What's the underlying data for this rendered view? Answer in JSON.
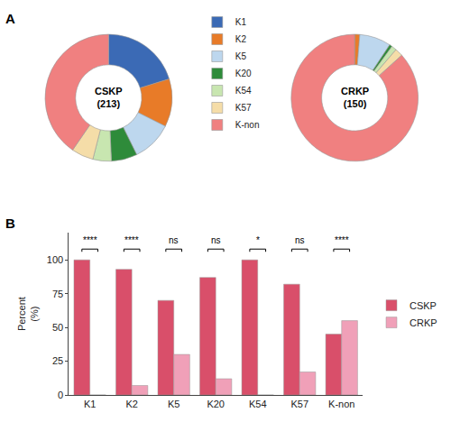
{
  "chart_data": [
    {
      "type": "pie",
      "title": "A",
      "categories": [
        "K1",
        "K2",
        "K5",
        "K20",
        "K54",
        "K57",
        "K-non"
      ],
      "values": [
        20.2,
        12.2,
        10.3,
        6.6,
        4.7,
        5.6,
        40.4
      ],
      "colors": [
        "#3B6AB5",
        "#E87B28",
        "#BDD7EE",
        "#2E8B3A",
        "#C8E6B0",
        "#F5DDA8",
        "#F08080"
      ],
      "annotations": [
        "CSKP\n(213)"
      ],
      "legend": "top"
    },
    {
      "type": "pie",
      "categories": [
        "K1",
        "K2",
        "K5",
        "K20",
        "K54",
        "K57",
        "K-non"
      ],
      "values": [
        0.0,
        1.3,
        8.0,
        0.7,
        1.3,
        2.0,
        86.7
      ],
      "colors": [
        "#3B6AB5",
        "#E87B28",
        "#BDD7EE",
        "#2E8B3A",
        "#C8E6B0",
        "#F5DDA8",
        "#F08080"
      ],
      "annotations": [
        "CRKP\n(150)"
      ],
      "legend": "top"
    },
    {
      "type": "bar",
      "title": "B",
      "categories": [
        "K1",
        "K2",
        "K5",
        "K20",
        "K54",
        "K57",
        "K-non"
      ],
      "series": [
        {
          "name": "CSKP",
          "color": "#D94F6A",
          "values": [
            100,
            93,
            70,
            87,
            100,
            82,
            45
          ]
        },
        {
          "name": "CRKP",
          "color": "#F0A0B8",
          "values": [
            0,
            7,
            30,
            12,
            0,
            17,
            55
          ]
        }
      ],
      "ylabel": "Percent\n(%)",
      "ylim": [
        0,
        120
      ],
      "yticks": [
        0,
        25,
        50,
        75,
        100
      ],
      "grid": false,
      "legend": "right",
      "annotations": [
        {
          "x": "K1",
          "text": "****"
        },
        {
          "x": "K2",
          "text": "****"
        },
        {
          "x": "K5",
          "text": "ns"
        },
        {
          "x": "K20",
          "text": "ns"
        },
        {
          "x": "K54",
          "text": "*"
        },
        {
          "x": "K57",
          "text": "ns"
        },
        {
          "x": "K-non",
          "text": "****"
        }
      ]
    }
  ]
}
